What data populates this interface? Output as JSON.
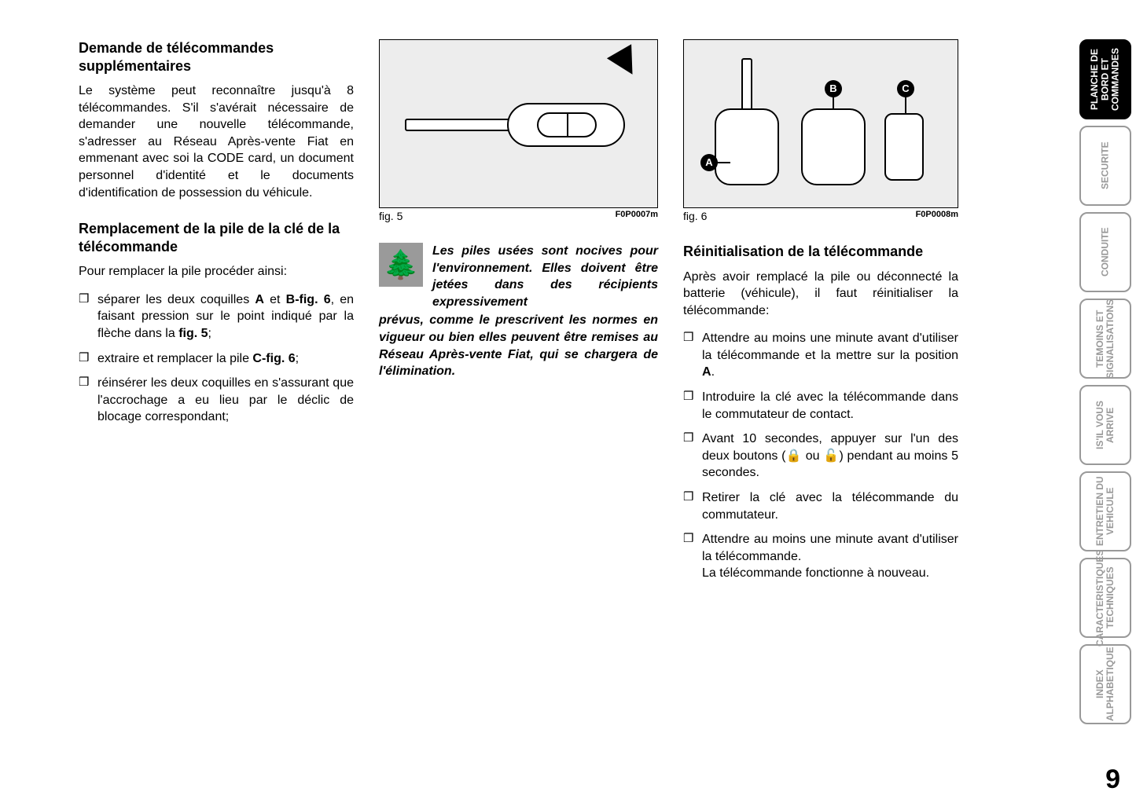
{
  "page_number": "9",
  "col1": {
    "section1": {
      "heading": "Demande de télécommandes supplémentaires",
      "body": "Le système peut reconnaître jusqu'à 8 télécommandes. S'il s'avérait nécessaire de demander une nouvelle télécommande, s'adresser au Réseau Après-vente Fiat en emmenant avec soi la CODE card, un document personnel d'identité et le documents d'identification de possession du véhicule."
    },
    "section2": {
      "heading": "Remplacement de la pile de la clé de la télécommande",
      "intro": "Pour remplacer la pile procéder ainsi:",
      "items": [
        "séparer les deux coquilles <b>A</b> et <b>B-fig. 6</b>, en faisant pression sur le point indiqué par la flèche dans la <b>fig. 5</b>;",
        "extraire et remplacer la pile <b>C-fig. 6</b>;",
        "réinsérer les deux coquilles en s'assurant que l'accrochage a eu lieu par le déclic de blocage correspondant;"
      ]
    }
  },
  "col2": {
    "fig5": {
      "caption": "fig. 5",
      "code": "F0P0007m"
    },
    "warning": {
      "first_lines": "Les piles usées sont nocives pour l'environnement. Elles doivent être jetées dans des récipients expressivement",
      "continuation": "prévus, comme le prescrivent les normes en vigueur ou bien elles peuvent être remises au Réseau Après-vente Fiat, qui se chargera de l'élimination."
    }
  },
  "col3": {
    "fig6": {
      "caption": "fig. 6",
      "code": "F0P0008m",
      "labels": {
        "a": "A",
        "b": "B",
        "c": "C"
      }
    },
    "section": {
      "heading": "Réinitialisation de la télécommande",
      "intro": "Après avoir remplacé la pile ou déconnecté la batterie (véhicule), il faut réinitialiser la télécommande:",
      "items": [
        "Attendre au moins une minute avant d'utiliser la télécommande et la mettre sur la position <b>A</b>.",
        "Introduire la clé avec la télécommande dans le commutateur de contact.",
        "Avant 10 secondes, appuyer sur l'un des deux boutons (🔒 ou 🔓) pendant au moins 5 secondes.",
        "Retirer la clé avec la télécommande du commutateur.",
        "Attendre au moins une minute avant d'utiliser la télécommande.<br>La télécommande fonctionne à nouveau."
      ]
    }
  },
  "tabs": [
    {
      "label": "PLANCHE DE BORD ET COMMANDES",
      "active": true
    },
    {
      "label": "SECURITE",
      "active": false
    },
    {
      "label": "CONDUITE",
      "active": false
    },
    {
      "label": "TEMOINS ET SIGNALISATIONS",
      "active": false
    },
    {
      "label": "IS'IL VOUS ARRIVE",
      "active": false
    },
    {
      "label": "ENTRETIEN DU VEHICULE",
      "active": false
    },
    {
      "label": "CARACTERISTIQUES TECHNIQUES",
      "active": false
    },
    {
      "label": "INDEX ALPHABETIQUE",
      "active": false
    }
  ],
  "colors": {
    "figure_bg": "#ededed",
    "tab_inactive_border": "#999999",
    "tab_inactive_text": "#999999",
    "tab_active_bg": "#000000",
    "warning_icon_bg": "#9a9a9a"
  }
}
